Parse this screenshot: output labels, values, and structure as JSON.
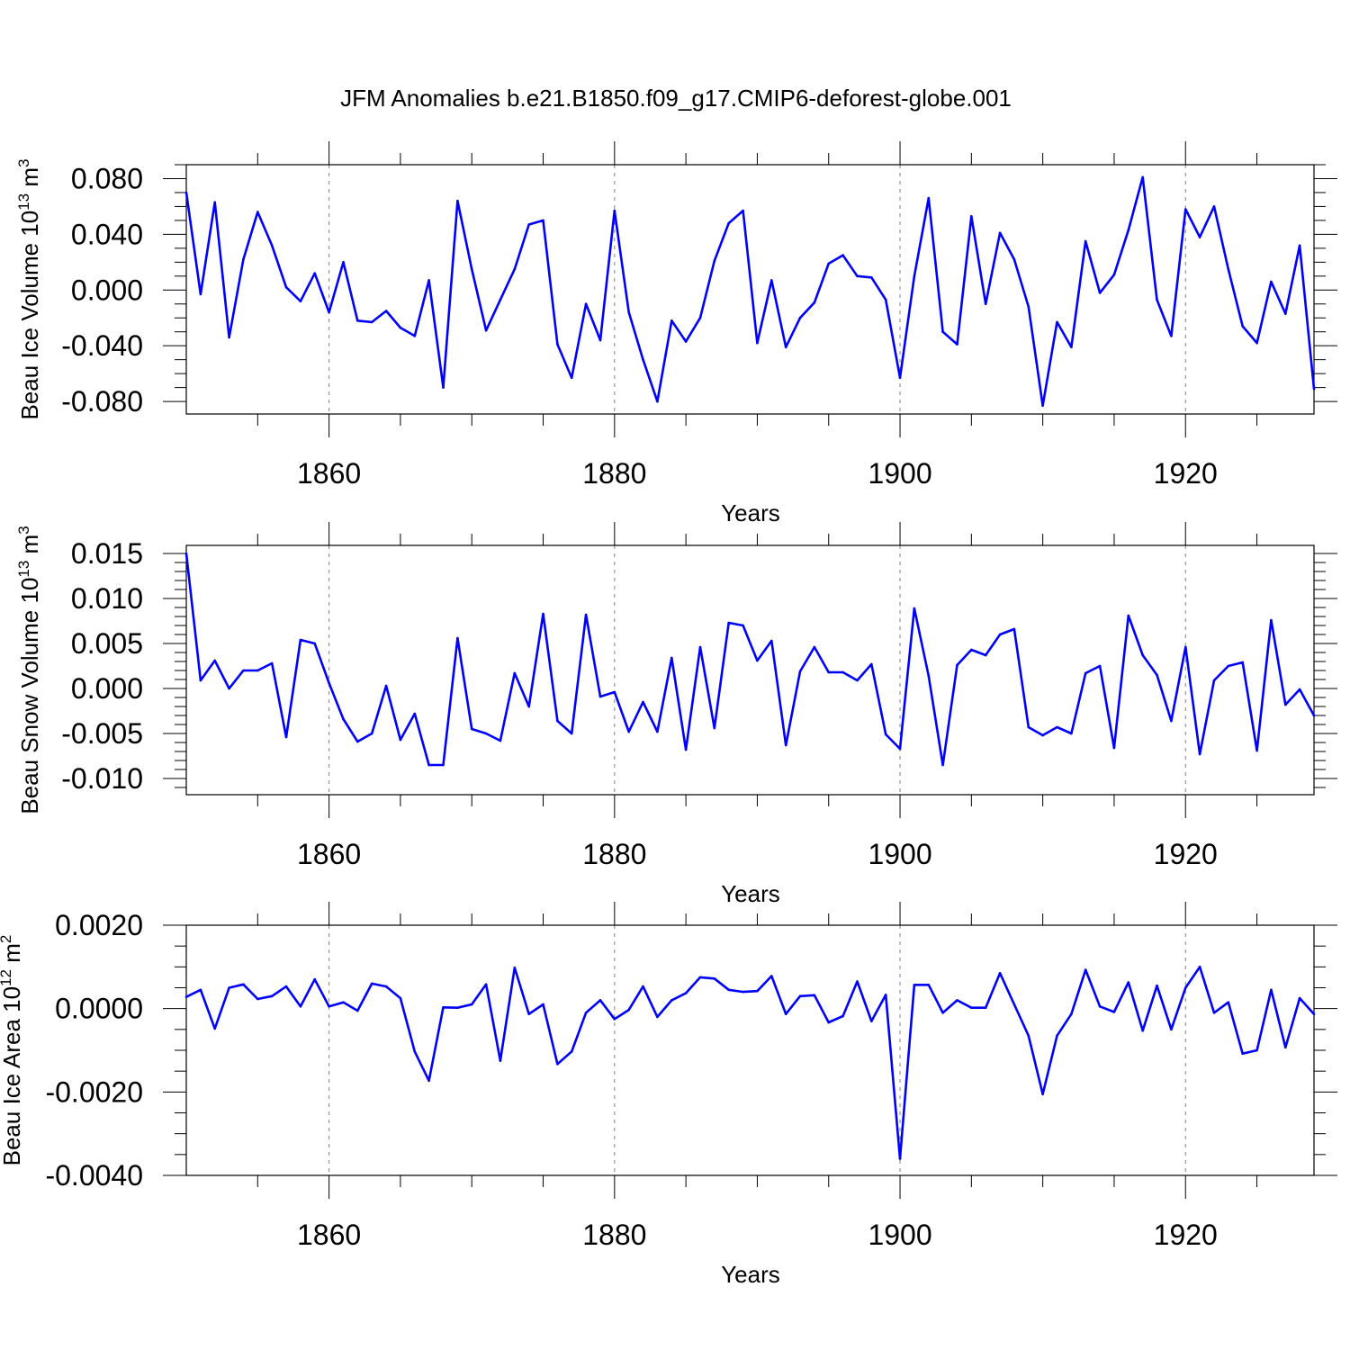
{
  "title": "JFM Anomalies b.e21.B1850.f09_g17.CMIP6-deforest-globe.001",
  "colors": {
    "line": "#0000ff",
    "axis": "#000000",
    "grid": "#808080",
    "background": "#ffffff"
  },
  "chart_data": [
    {
      "type": "line",
      "name": "beau-ice-volume",
      "ylabel": {
        "text": "Beau Ice Volume 10",
        "exp": "13",
        "unit": " m",
        "unit_exp": "3"
      },
      "xlabel": "Years",
      "xlim": [
        1850,
        1929
      ],
      "ylim": [
        -0.089,
        0.09
      ],
      "x_ticks": [
        1860,
        1880,
        1900,
        1920
      ],
      "x_tick_labels": [
        "1860",
        "1880",
        "1900",
        "1920"
      ],
      "y_ticks": [
        0.08,
        0.04,
        0.0,
        -0.04,
        -0.08
      ],
      "y_tick_labels": [
        "0.080",
        "0.040",
        "0.000",
        "-0.040",
        "-0.080"
      ],
      "y_minor_step": 0.01,
      "grid": "vertical-dashed-at-major-x",
      "x_start": 1850,
      "values": [
        0.07,
        -0.003,
        0.063,
        -0.034,
        0.022,
        0.056,
        0.032,
        0.002,
        -0.008,
        0.012,
        -0.016,
        0.02,
        -0.022,
        -0.023,
        -0.015,
        -0.027,
        -0.033,
        0.007,
        -0.07,
        0.064,
        0.015,
        -0.029,
        -0.007,
        0.015,
        0.047,
        0.05,
        -0.039,
        -0.063,
        -0.01,
        -0.036,
        0.057,
        -0.016,
        -0.05,
        -0.08,
        -0.022,
        -0.037,
        -0.02,
        0.021,
        0.048,
        0.057,
        -0.038,
        0.007,
        -0.041,
        -0.02,
        -0.009,
        0.019,
        0.025,
        0.01,
        0.009,
        -0.007,
        -0.063,
        0.01,
        0.066,
        -0.03,
        -0.039,
        0.053,
        -0.01,
        0.041,
        0.022,
        -0.012,
        -0.083,
        -0.023,
        -0.041,
        0.035,
        -0.002,
        0.011,
        0.043,
        0.081,
        -0.007,
        -0.033,
        0.058,
        0.038,
        0.06,
        0.015,
        -0.026,
        -0.038,
        0.006,
        -0.017,
        0.032,
        -0.071
      ]
    },
    {
      "type": "line",
      "name": "beau-snow-volume",
      "ylabel": {
        "text": "Beau Snow Volume 10",
        "exp": "13",
        "unit": " m",
        "unit_exp": "3"
      },
      "xlabel": "Years",
      "xlim": [
        1850,
        1929
      ],
      "ylim": [
        -0.0118,
        0.0159
      ],
      "x_ticks": [
        1860,
        1880,
        1900,
        1920
      ],
      "x_tick_labels": [
        "1860",
        "1880",
        "1900",
        "1920"
      ],
      "y_ticks": [
        0.015,
        0.01,
        0.005,
        0.0,
        -0.005,
        -0.01
      ],
      "y_tick_labels": [
        "0.015",
        "0.010",
        "0.005",
        "0.000",
        "-0.005",
        "-0.010"
      ],
      "y_minor_step": 0.001,
      "grid": "vertical-dashed-at-major-x",
      "x_start": 1850,
      "values": [
        0.015,
        0.0009,
        0.0031,
        0.0,
        0.002,
        0.002,
        0.0028,
        -0.0054,
        0.0054,
        0.005,
        0.0006,
        -0.0034,
        -0.0059,
        -0.005,
        0.0003,
        -0.0057,
        -0.0028,
        -0.0085,
        -0.0085,
        0.0056,
        -0.0045,
        -0.005,
        -0.0058,
        0.0017,
        -0.002,
        0.0083,
        -0.0036,
        -0.005,
        0.0082,
        -0.0009,
        -0.0004,
        -0.0048,
        -0.0015,
        -0.0048,
        0.0034,
        -0.0068,
        0.0046,
        -0.0044,
        0.0073,
        0.007,
        0.0031,
        0.0053,
        -0.0063,
        0.0019,
        0.0046,
        0.0018,
        0.0018,
        0.0009,
        0.0027,
        -0.0051,
        -0.0067,
        0.0089,
        0.0014,
        -0.0085,
        0.0026,
        0.0043,
        0.0037,
        0.006,
        0.0066,
        -0.0043,
        -0.0052,
        -0.0043,
        -0.005,
        0.0017,
        0.0025,
        -0.0066,
        0.0081,
        0.0037,
        0.0015,
        -0.0036,
        0.0046,
        -0.0073,
        0.0009,
        0.0025,
        0.0029,
        -0.0069,
        0.0076,
        -0.0018,
        -0.0001,
        -0.003
      ]
    },
    {
      "type": "line",
      "name": "beau-ice-area",
      "ylabel": {
        "text": "Beau Ice Area 10",
        "exp": "12",
        "unit": " m",
        "unit_exp": "2"
      },
      "xlabel": "Years",
      "xlim": [
        1850,
        1929
      ],
      "ylim": [
        -0.004,
        0.002
      ],
      "x_ticks": [
        1860,
        1880,
        1900,
        1920
      ],
      "x_tick_labels": [
        "1860",
        "1880",
        "1900",
        "1920"
      ],
      "y_ticks": [
        0.002,
        0.0,
        -0.002,
        -0.004
      ],
      "y_tick_labels": [
        "0.0020",
        "0.0000",
        "-0.0020",
        "-0.0040"
      ],
      "y_minor_step": 0.0005,
      "grid": "vertical-dashed-at-major-x",
      "x_start": 1850,
      "values": [
        0.00028,
        0.00045,
        -0.00048,
        0.0005,
        0.00058,
        0.00023,
        0.0003,
        0.00053,
        5e-05,
        0.0007,
        5e-05,
        0.00015,
        -5e-05,
        0.0006,
        0.00053,
        0.00025,
        -0.00103,
        -0.00173,
        3e-05,
        2e-05,
        0.0001,
        0.00058,
        -0.00125,
        0.00098,
        -0.00013,
        0.0001,
        -0.00133,
        -0.00103,
        -0.0001,
        0.0002,
        -0.00025,
        -3e-05,
        0.00053,
        -0.0002,
        0.0002,
        0.00037,
        0.00075,
        0.00072,
        0.00045,
        0.0004,
        0.00042,
        0.00078,
        -0.00013,
        0.0003,
        0.00032,
        -0.00033,
        -0.00018,
        0.00065,
        -0.0003,
        0.00033,
        -0.0036,
        0.00057,
        0.00057,
        -0.0001,
        0.0002,
        2e-05,
        2e-05,
        0.00085,
        0.0001,
        -0.00065,
        -0.00205,
        -0.00065,
        -0.00013,
        0.00093,
        5e-05,
        -8e-05,
        0.00063,
        -0.00053,
        0.00055,
        -0.0005,
        0.0005,
        0.001,
        -0.0001,
        0.00015,
        -0.00108,
        -0.001,
        0.00045,
        -0.00093,
        0.00025,
        -0.00013
      ]
    }
  ]
}
